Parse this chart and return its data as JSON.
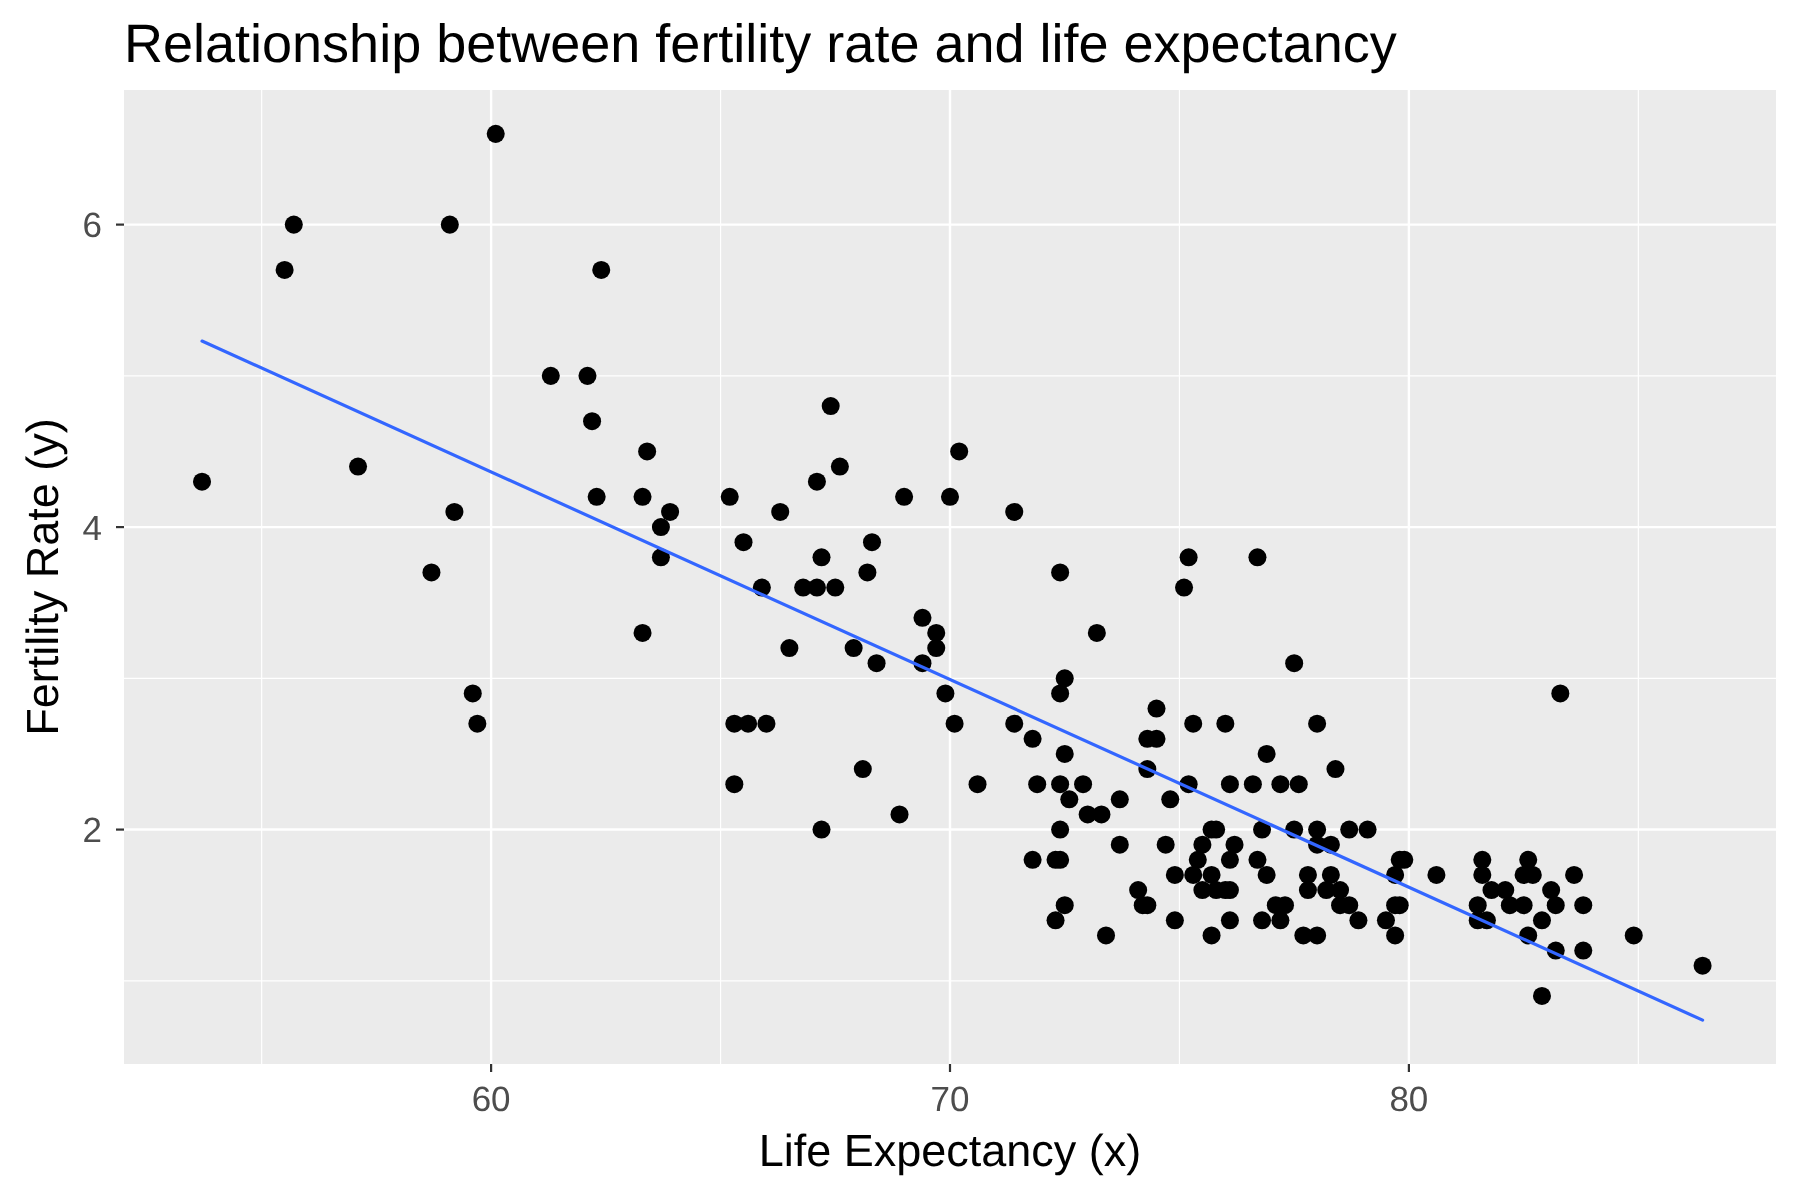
{
  "chart_data": {
    "type": "scatter",
    "title": "Relationship between fertility rate and life expectancy",
    "xlabel": "Life Expectancy (x)",
    "ylabel": "Fertility Rate (y)",
    "xlim": [
      52,
      88
    ],
    "ylim": [
      0.45,
      6.89
    ],
    "xticks": [
      {
        "value": 55,
        "label": null
      },
      60,
      {
        "value": 65,
        "label": null
      },
      70,
      {
        "value": 75,
        "label": null
      },
      80,
      {
        "value": 85,
        "label": null
      }
    ],
    "yticks": [
      {
        "value": 1,
        "label": null
      },
      2,
      {
        "value": 3,
        "label": null
      },
      4,
      {
        "value": 5,
        "label": null
      },
      6
    ],
    "grid": true,
    "series": [
      {
        "color": "#000000",
        "marker": "circle",
        "x": [
          53.7,
          55.5,
          55.7,
          57.1,
          58.7,
          59.1,
          59.2,
          59.6,
          59.7,
          60.1,
          61.3,
          62.1,
          62.2,
          62.3,
          62.4,
          63.3,
          63.3,
          63.4,
          63.7,
          63.7,
          63.9,
          65.2,
          65.3,
          65.3,
          65.5,
          65.6,
          65.9,
          66.0,
          66.3,
          66.5,
          66.8,
          67.1,
          67.1,
          67.2,
          67.2,
          67.4,
          67.5,
          67.6,
          67.9,
          68.1,
          68.2,
          68.3,
          68.4,
          68.9,
          69.0,
          69.4,
          69.4,
          69.7,
          69.7,
          69.9,
          70.0,
          70.1,
          70.2,
          70.6,
          71.4,
          71.4,
          71.8,
          71.8,
          71.9,
          72.4,
          73.2,
          72.5,
          72.4,
          74.5,
          74.3,
          74.5,
          75.3,
          76.0,
          78.0,
          75.2,
          75.1,
          76.7,
          77.5,
          72.5,
          76.9,
          78.4,
          74.3,
          72.4,
          72.9,
          75.2,
          76.1,
          76.6,
          77.2,
          77.6,
          72.6,
          73.7,
          74.8,
          73.0,
          73.3,
          72.4,
          75.7,
          75.8,
          76.8,
          77.5,
          78.0,
          78.7,
          79.1,
          72.3,
          72.4,
          73.7,
          74.7,
          75.5,
          76.2,
          78.0,
          78.3,
          75.4,
          76.1,
          76.7,
          74.1,
          74.2,
          74.3,
          74.9,
          74.9,
          75.3,
          75.5,
          75.8,
          76.0,
          76.1,
          75.7,
          76.1,
          75.7,
          76.9,
          76.8,
          77.2,
          77.1,
          77.3,
          77.7,
          78.0,
          77.8,
          77.8,
          78.3,
          78.2,
          78.5,
          78.5,
          78.7,
          78.9,
          79.5,
          79.7,
          79.8,
          79.7,
          79.7,
          79.8,
          79.9,
          80.6,
          72.5,
          72.3,
          73.4,
          83.3,
          81.6,
          81.6,
          81.8,
          82.1,
          81.5,
          81.5,
          81.7,
          82.6,
          82.5,
          82.7,
          82.2,
          82.5,
          83.1,
          83.2,
          82.9,
          82.6,
          83.2,
          82.9,
          83.6,
          83.8,
          83.8,
          84.9,
          86.4
        ],
        "values": [
          4.3,
          5.7,
          6.0,
          4.4,
          3.7,
          6.0,
          4.1,
          2.9,
          2.7,
          6.6,
          5.0,
          5.0,
          4.7,
          4.2,
          5.7,
          4.2,
          3.3,
          4.5,
          4.0,
          3.8,
          4.1,
          4.2,
          2.7,
          2.3,
          3.9,
          2.7,
          3.6,
          2.7,
          4.1,
          3.2,
          3.6,
          3.6,
          4.3,
          3.8,
          2.0,
          4.8,
          3.6,
          4.4,
          3.2,
          2.4,
          3.7,
          3.9,
          3.1,
          2.1,
          4.2,
          3.4,
          3.1,
          3.3,
          3.2,
          2.9,
          4.2,
          2.7,
          4.5,
          2.3,
          4.1,
          2.7,
          2.6,
          1.8,
          2.3,
          3.7,
          3.3,
          3.0,
          2.9,
          2.8,
          2.6,
          2.6,
          2.7,
          2.7,
          2.7,
          3.8,
          3.6,
          3.8,
          3.1,
          2.5,
          2.5,
          2.4,
          2.4,
          2.3,
          2.3,
          2.3,
          2.3,
          2.3,
          2.3,
          2.3,
          2.2,
          2.2,
          2.2,
          2.1,
          2.1,
          2.0,
          2.0,
          2.0,
          2.0,
          2.0,
          2.0,
          2.0,
          2.0,
          1.8,
          1.8,
          1.9,
          1.9,
          1.9,
          1.9,
          1.9,
          1.9,
          1.8,
          1.8,
          1.8,
          1.6,
          1.5,
          1.5,
          1.7,
          1.4,
          1.7,
          1.6,
          1.6,
          1.6,
          1.6,
          1.7,
          1.4,
          1.3,
          1.7,
          1.4,
          1.4,
          1.5,
          1.5,
          1.3,
          1.3,
          1.7,
          1.6,
          1.7,
          1.6,
          1.6,
          1.5,
          1.5,
          1.4,
          1.4,
          1.5,
          1.5,
          1.3,
          1.7,
          1.8,
          1.8,
          1.7,
          1.5,
          1.4,
          1.3,
          2.9,
          1.8,
          1.7,
          1.6,
          1.6,
          1.5,
          1.4,
          1.4,
          1.8,
          1.7,
          1.7,
          1.5,
          1.5,
          1.6,
          1.5,
          1.4,
          1.3,
          1.2,
          0.9,
          1.7,
          1.5,
          1.2,
          1.3,
          1.1
        ]
      },
      {
        "type": "line",
        "color": "#3366ff",
        "marker": "none",
        "x": [
          53.7,
          86.4
        ],
        "values": [
          5.23,
          0.74
        ]
      }
    ]
  }
}
